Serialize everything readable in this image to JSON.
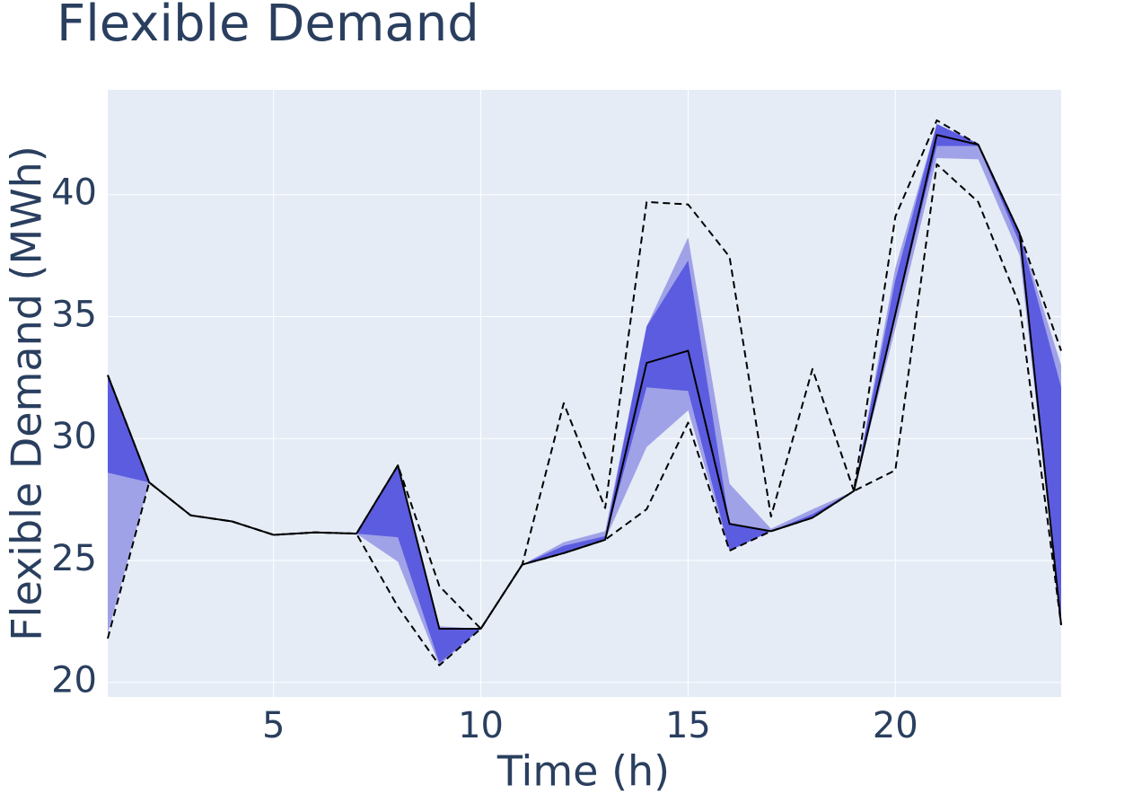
{
  "chart_data": {
    "type": "line",
    "title": "Flexible Demand",
    "x_label": "Time (h)",
    "y_label": "Flexible Demand (MWh)",
    "x": [
      1,
      2,
      3,
      4,
      5,
      6,
      7,
      8,
      9,
      10,
      11,
      12,
      13,
      14,
      15,
      16,
      17,
      18,
      19,
      20,
      21,
      22,
      23,
      24
    ],
    "xlim": [
      1,
      24
    ],
    "xticks": [
      5,
      10,
      15,
      20
    ],
    "ylim": [
      19.4,
      44.3
    ],
    "yticks": [
      20,
      25,
      30,
      35,
      40
    ],
    "grid": true,
    "bands": [
      {
        "color": "#a0a2e8",
        "lower": [
          22.0,
          28.2,
          26.85,
          26.6,
          26.05,
          26.15,
          26.1,
          24.95,
          20.7,
          22.2,
          24.83,
          25.3,
          25.85,
          29.65,
          31.15,
          25.4,
          26.2,
          26.75,
          27.85,
          34.5,
          41.5,
          41.45,
          37.5,
          22.35
        ],
        "upper": [
          32.6,
          28.2,
          26.85,
          26.6,
          26.05,
          26.15,
          26.1,
          28.9,
          22.3,
          22.2,
          24.83,
          25.75,
          26.2,
          34.6,
          38.25,
          28.15,
          26.3,
          27.1,
          27.85,
          37.0,
          42.9,
          42.05,
          38.4,
          33.0
        ]
      },
      {
        "color": "#5c5ce0",
        "lower": [
          28.6,
          28.2,
          26.85,
          26.6,
          26.05,
          26.15,
          26.1,
          25.95,
          20.8,
          22.2,
          24.83,
          25.3,
          25.85,
          32.1,
          31.95,
          25.4,
          26.2,
          26.75,
          27.85,
          35.0,
          42.0,
          42.0,
          38.0,
          22.35
        ],
        "upper": [
          32.6,
          28.2,
          26.85,
          26.6,
          26.05,
          26.15,
          26.1,
          28.9,
          22.2,
          22.2,
          24.83,
          25.6,
          26.0,
          34.6,
          37.3,
          26.5,
          26.2,
          26.9,
          27.85,
          36.5,
          42.9,
          42.1,
          38.4,
          32.1
        ]
      }
    ],
    "series": [
      {
        "color": "#000000",
        "dash": true,
        "values": [
          32.6,
          28.2,
          26.85,
          26.6,
          26.05,
          26.15,
          26.1,
          28.9,
          23.95,
          22.2,
          24.83,
          31.45,
          27.15,
          39.7,
          39.6,
          37.45,
          26.8,
          32.85,
          27.85,
          39.1,
          43.05,
          42.05,
          38.4,
          33.6
        ]
      },
      {
        "color": "#000000",
        "dash": true,
        "values": [
          21.8,
          28.2,
          26.85,
          26.6,
          26.05,
          26.15,
          26.1,
          23.1,
          20.7,
          22.2,
          24.83,
          25.3,
          25.85,
          27.1,
          30.65,
          25.4,
          26.2,
          26.75,
          27.85,
          28.7,
          41.25,
          39.7,
          35.45,
          22.35
        ]
      },
      {
        "color": "#000000",
        "dash": false,
        "values": [
          32.6,
          28.2,
          26.85,
          26.6,
          26.05,
          26.15,
          26.1,
          28.9,
          22.2,
          22.2,
          24.83,
          25.3,
          25.85,
          33.1,
          33.6,
          26.5,
          26.2,
          26.75,
          27.85,
          35.1,
          42.45,
          42.05,
          38.4,
          22.35
        ]
      }
    ]
  }
}
